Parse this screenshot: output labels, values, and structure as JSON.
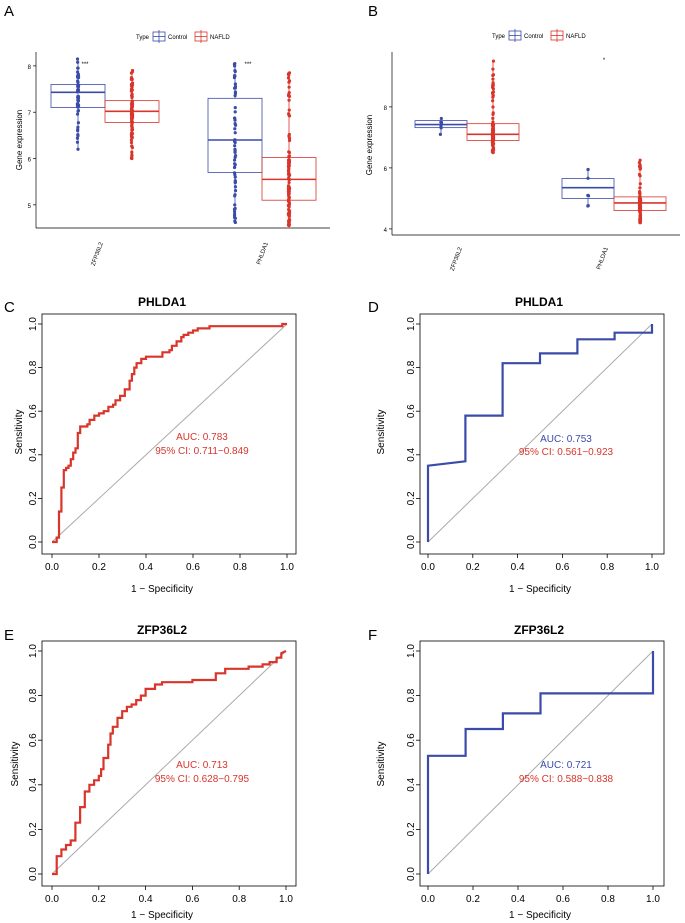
{
  "colors": {
    "control": "#3b4ba8",
    "nafld": "#d9352b",
    "diag": "#aaaaaa"
  },
  "chart_data": [
    {
      "panel": "A",
      "type": "box",
      "legend_title": "Type",
      "legend": [
        "Control",
        "NAFLD"
      ],
      "ylabel": "Gene expression",
      "ylim": [
        4.5,
        8.3
      ],
      "yticks": [
        5,
        6,
        7,
        8
      ],
      "categories": [
        "ZFP36L2",
        "PHLDA1"
      ],
      "significance": [
        "***",
        "***"
      ],
      "groups": [
        {
          "control": {
            "q1": 7.1,
            "median": 7.43,
            "q3": 7.6,
            "min": 6.2,
            "max": 8.15
          },
          "nafld": {
            "q1": 6.78,
            "median": 7.02,
            "q3": 7.25,
            "min": 6.0,
            "max": 7.9
          }
        },
        {
          "control": {
            "q1": 5.7,
            "median": 6.4,
            "q3": 7.3,
            "min": 4.62,
            "max": 8.05
          },
          "nafld": {
            "q1": 5.1,
            "median": 5.55,
            "q3": 6.02,
            "min": 4.55,
            "max": 7.85
          }
        }
      ]
    },
    {
      "panel": "B",
      "type": "box",
      "legend_title": "Type",
      "legend": [
        "Control",
        "NAFLD"
      ],
      "ylabel": "Gene expression",
      "ylim": [
        3.8,
        9.8
      ],
      "yticks": [
        4,
        6,
        8
      ],
      "categories": [
        "ZFP36L2",
        "PHLDA1"
      ],
      "significance": [
        "",
        "*"
      ],
      "groups": [
        {
          "control": {
            "q1": 7.32,
            "median": 7.42,
            "q3": 7.55,
            "min": 7.1,
            "max": 7.62
          },
          "nafld": {
            "q1": 6.9,
            "median": 7.1,
            "q3": 7.45,
            "min": 6.5,
            "max": 9.5
          }
        },
        {
          "control": {
            "q1": 5.0,
            "median": 5.35,
            "q3": 5.65,
            "min": 4.75,
            "max": 5.95
          },
          "nafld": {
            "q1": 4.6,
            "median": 4.85,
            "q3": 5.05,
            "min": 4.2,
            "max": 6.25
          }
        }
      ]
    },
    {
      "panel": "C",
      "type": "line",
      "title": "PHLDA1",
      "xlabel": "1 − Specificity",
      "ylabel": "Sensitivity",
      "auc_text": "AUC: 0.783",
      "ci_text": "95% CI: 0.711−0.849",
      "text_color": "nafld",
      "line_color": "nafld",
      "x": [
        0,
        0.02,
        0.02,
        0.03,
        0.03,
        0.04,
        0.04,
        0.05,
        0.05,
        0.06,
        0.06,
        0.07,
        0.07,
        0.08,
        0.08,
        0.09,
        0.09,
        0.1,
        0.1,
        0.11,
        0.11,
        0.12,
        0.12,
        0.15,
        0.15,
        0.16,
        0.16,
        0.18,
        0.18,
        0.2,
        0.2,
        0.22,
        0.22,
        0.24,
        0.24,
        0.26,
        0.26,
        0.27,
        0.27,
        0.29,
        0.29,
        0.31,
        0.31,
        0.33,
        0.33,
        0.34,
        0.34,
        0.35,
        0.35,
        0.36,
        0.36,
        0.38,
        0.38,
        0.4,
        0.4,
        0.44,
        0.44,
        0.47,
        0.47,
        0.5,
        0.5,
        0.51,
        0.51,
        0.53,
        0.53,
        0.55,
        0.55,
        0.56,
        0.56,
        0.58,
        0.58,
        0.6,
        0.6,
        0.62,
        0.62,
        0.64,
        0.64,
        0.67,
        0.67,
        0.69,
        0.69,
        0.74,
        0.74,
        0.96,
        0.96,
        0.98,
        0.98,
        1.0
      ],
      "y": [
        0,
        0,
        0.02,
        0.02,
        0.14,
        0.14,
        0.25,
        0.25,
        0.33,
        0.33,
        0.34,
        0.34,
        0.35,
        0.35,
        0.38,
        0.38,
        0.41,
        0.41,
        0.43,
        0.43,
        0.5,
        0.5,
        0.53,
        0.53,
        0.54,
        0.54,
        0.56,
        0.56,
        0.58,
        0.58,
        0.59,
        0.59,
        0.6,
        0.6,
        0.62,
        0.62,
        0.63,
        0.63,
        0.65,
        0.65,
        0.67,
        0.67,
        0.7,
        0.7,
        0.74,
        0.74,
        0.77,
        0.77,
        0.8,
        0.8,
        0.82,
        0.82,
        0.84,
        0.84,
        0.85,
        0.85,
        0.85,
        0.85,
        0.87,
        0.87,
        0.88,
        0.88,
        0.9,
        0.9,
        0.92,
        0.92,
        0.94,
        0.94,
        0.95,
        0.95,
        0.96,
        0.96,
        0.97,
        0.97,
        0.98,
        0.98,
        0.98,
        0.98,
        0.99,
        0.99,
        0.99,
        0.99,
        0.99,
        0.99,
        0.99,
        0.99,
        1.0,
        1.0
      ]
    },
    {
      "panel": "D",
      "type": "line",
      "title": "PHLDA1",
      "xlabel": "1 − Specificity",
      "ylabel": "Sensitivity",
      "auc_text": "AUC: 0.753",
      "ci_text": "95% CI: 0.561−0.923",
      "text_color": "control",
      "ci_color": "nafld",
      "line_color": "control",
      "x": [
        0,
        0,
        0.167,
        0.167,
        0.333,
        0.333,
        0.5,
        0.5,
        0.667,
        0.667,
        0.833,
        0.833,
        1.0,
        1.0
      ],
      "y": [
        0,
        0.35,
        0.37,
        0.58,
        0.58,
        0.82,
        0.82,
        0.865,
        0.865,
        0.93,
        0.93,
        0.96,
        0.96,
        1.0
      ]
    },
    {
      "panel": "E",
      "type": "line",
      "title": "ZFP36L2",
      "xlabel": "1 − Specificity",
      "ylabel": "Sensitivity",
      "auc_text": "AUC: 0.713",
      "ci_text": "95% CI: 0.628−0.795",
      "text_color": "nafld",
      "line_color": "nafld",
      "x": [
        0,
        0.02,
        0.02,
        0.04,
        0.04,
        0.06,
        0.06,
        0.08,
        0.08,
        0.1,
        0.1,
        0.12,
        0.12,
        0.14,
        0.14,
        0.16,
        0.16,
        0.18,
        0.18,
        0.2,
        0.2,
        0.21,
        0.21,
        0.22,
        0.22,
        0.24,
        0.24,
        0.25,
        0.25,
        0.26,
        0.26,
        0.28,
        0.28,
        0.3,
        0.3,
        0.32,
        0.32,
        0.34,
        0.34,
        0.36,
        0.36,
        0.38,
        0.38,
        0.4,
        0.4,
        0.44,
        0.44,
        0.47,
        0.47,
        0.49,
        0.49,
        0.6,
        0.6,
        0.7,
        0.7,
        0.74,
        0.74,
        0.84,
        0.84,
        0.9,
        0.9,
        0.93,
        0.93,
        0.96,
        0.96,
        0.98,
        0.98,
        1.0
      ],
      "y": [
        0,
        0,
        0.08,
        0.08,
        0.11,
        0.11,
        0.13,
        0.13,
        0.15,
        0.15,
        0.23,
        0.23,
        0.3,
        0.3,
        0.37,
        0.37,
        0.4,
        0.4,
        0.42,
        0.42,
        0.44,
        0.44,
        0.47,
        0.47,
        0.52,
        0.52,
        0.58,
        0.58,
        0.63,
        0.63,
        0.66,
        0.66,
        0.7,
        0.7,
        0.73,
        0.73,
        0.75,
        0.75,
        0.76,
        0.76,
        0.78,
        0.78,
        0.8,
        0.8,
        0.83,
        0.83,
        0.85,
        0.85,
        0.86,
        0.86,
        0.86,
        0.86,
        0.87,
        0.87,
        0.9,
        0.9,
        0.92,
        0.92,
        0.93,
        0.93,
        0.94,
        0.94,
        0.95,
        0.95,
        0.97,
        0.97,
        0.99,
        1.0
      ]
    },
    {
      "panel": "F",
      "type": "line",
      "title": "ZFP36L2",
      "xlabel": "1 − Specificity",
      "ylabel": "Sensitivity",
      "auc_text": "AUC: 0.721",
      "ci_text": "95% CI: 0.588−0.838",
      "text_color": "control",
      "ci_color": "nafld",
      "line_color": "control",
      "x": [
        0,
        0,
        0.167,
        0.167,
        0.333,
        0.333,
        0.5,
        0.5,
        1.0,
        1.0
      ],
      "y": [
        0,
        0.53,
        0.53,
        0.65,
        0.65,
        0.72,
        0.72,
        0.81,
        0.81,
        1.0
      ]
    }
  ],
  "roc_ticks": [
    "0.0",
    "0.2",
    "0.4",
    "0.6",
    "0.8",
    "1.0"
  ]
}
